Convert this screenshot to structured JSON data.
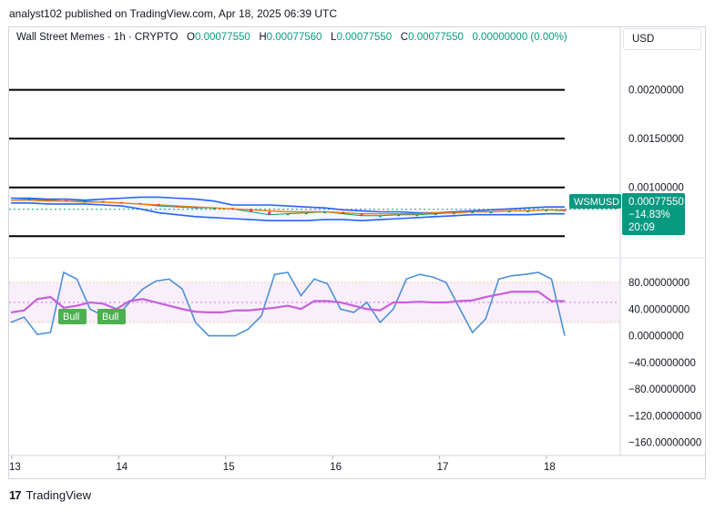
{
  "attribution": "analyst102 published on TradingView.com, Apr 18, 2025 06:39 UTC",
  "legend": {
    "symbol": "Wall Street Memes · 1h · CRYPTO",
    "o_label": "O",
    "o_value": "0.00077550",
    "h_label": "H",
    "h_value": "0.00077560",
    "l_label": "L",
    "l_value": "0.00077550",
    "c_label": "C",
    "c_value": "0.00077550",
    "change": "0.00000000 (0.00%)"
  },
  "currency": "USD",
  "price_tag": {
    "symbol": "WSMUSD",
    "price": "0.00077550",
    "change": "−14.83%",
    "countdown": "20:09"
  },
  "brand": {
    "logo": "17",
    "name": "TradingView"
  },
  "colors": {
    "up": "#089981",
    "down": "#f23645",
    "bb": "#2962ff",
    "ma": "#f57c00",
    "stoch_k": "#4a90d9",
    "stoch_d": "#c75fdc",
    "bull": "#4caf50"
  },
  "chart_data": [
    {
      "type": "line",
      "panel": "price",
      "x_ticks": [
        "13",
        "14",
        "15",
        "16",
        "17",
        "18"
      ],
      "y_ticks": [
        "0.00200000",
        "0.00150000",
        "0.00100000"
      ],
      "ylim": [
        0.0004,
        0.0025
      ],
      "horizontal_levels": [
        0.002,
        0.0015,
        0.001,
        0.0005
      ],
      "last_price": 0.0007755,
      "series": [
        {
          "values": [
            0.00087,
            0.00088,
            0.00087,
            0.00086,
            0.00086,
            0.00085,
            0.00084,
            0.00083,
            0.00081,
            0.0008,
            0.00079,
            0.00079,
            0.00078,
            0.00075,
            0.00072,
            0.00073,
            0.00074,
            0.00075,
            0.00073,
            0.00071,
            0.00071,
            0.00072,
            0.00072,
            0.00073,
            0.00074,
            0.00075,
            0.00075,
            0.00076,
            0.00076,
            0.00077,
            0.00076
          ]
        },
        {
          "values": [
            0.00089,
            0.00089,
            0.00088,
            0.00088,
            0.00087,
            0.00088,
            0.00089,
            0.0009,
            0.0009,
            0.00089,
            0.00088,
            0.00086,
            0.00082,
            0.00082,
            0.00082,
            0.00081,
            0.0008,
            0.00079,
            0.00077,
            0.00076,
            0.00075,
            0.00075,
            0.00074,
            0.00074,
            0.00075,
            0.00076,
            0.00077,
            0.00078,
            0.00079,
            0.0008,
            0.0008
          ]
        },
        {
          "values": [
            0.00084,
            0.00084,
            0.00083,
            0.00083,
            0.00083,
            0.00082,
            0.00081,
            0.00078,
            0.00074,
            0.00072,
            0.0007,
            0.00069,
            0.00068,
            0.00067,
            0.00066,
            0.00066,
            0.00066,
            0.00067,
            0.00067,
            0.00066,
            0.00067,
            0.00068,
            0.00069,
            0.0007,
            0.00071,
            0.00072,
            0.00072,
            0.00072,
            0.00072,
            0.00073,
            0.00073
          ]
        },
        {
          "values": [
            0.00087,
            0.00087,
            0.00086,
            0.00086,
            0.00085,
            0.00085,
            0.00084,
            0.00083,
            0.00082,
            0.00081,
            0.0008,
            0.00079,
            0.00078,
            0.00077,
            0.00076,
            0.00075,
            0.00075,
            0.00075,
            0.00074,
            0.00073,
            0.00073,
            0.00073,
            0.00073,
            0.00074,
            0.00074,
            0.00075,
            0.00075,
            0.00076,
            0.00076,
            0.00077,
            0.00077
          ]
        }
      ]
    },
    {
      "type": "line",
      "panel": "stochastic",
      "y_ticks": [
        "80.00000000",
        "40.00000000",
        "0.00000000",
        "−40.00000000",
        "−80.00000000",
        "−120.00000000",
        "−160.00000000"
      ],
      "ylim": [
        -170,
        110
      ],
      "band": [
        20,
        80
      ],
      "midline": 50,
      "series": [
        {
          "values": [
            20,
            28,
            2,
            5,
            95,
            85,
            40,
            30,
            28,
            50,
            70,
            82,
            85,
            70,
            20,
            0,
            0,
            0,
            10,
            30,
            92,
            95,
            60,
            85,
            78,
            40,
            35,
            50,
            20,
            40,
            85,
            92,
            88,
            80,
            42,
            5,
            25,
            85,
            90,
            92,
            95,
            85,
            0
          ]
        },
        {
          "values": [
            35,
            38,
            55,
            58,
            42,
            45,
            50,
            48,
            40,
            52,
            55,
            50,
            45,
            40,
            36,
            35,
            35,
            38,
            38,
            40,
            42,
            45,
            40,
            52,
            52,
            50,
            45,
            40,
            38,
            50,
            50,
            51,
            50,
            50,
            52,
            53,
            58,
            62,
            66,
            66,
            66,
            52,
            52
          ]
        }
      ],
      "annotations": [
        "Bull",
        "Bull"
      ]
    }
  ]
}
